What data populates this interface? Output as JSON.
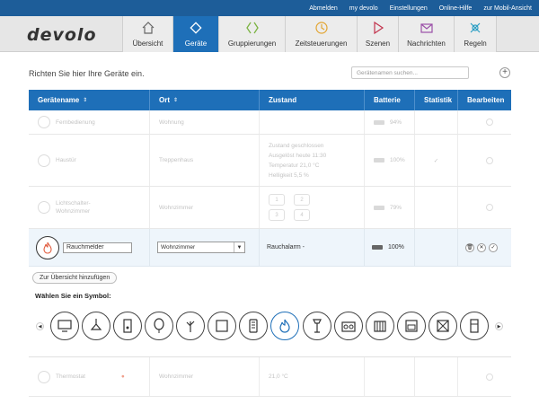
{
  "top_links": [
    "Abmelden",
    "my devolo",
    "Einstellungen",
    "Online-Hilfe",
    "zur Mobil-Ansicht"
  ],
  "brand": "devolo",
  "nav": [
    {
      "label": "Übersicht",
      "icon": "home-icon",
      "active": false
    },
    {
      "label": "Geräte",
      "icon": "diamond-icon",
      "active": true
    },
    {
      "label": "Gruppierungen",
      "icon": "group-icon",
      "active": false
    },
    {
      "label": "Zeitsteuerungen",
      "icon": "clock-icon",
      "active": false
    },
    {
      "label": "Szenen",
      "icon": "play-icon",
      "active": false
    },
    {
      "label": "Nachrichten",
      "icon": "envelope-icon",
      "active": false
    },
    {
      "label": "Regeln",
      "icon": "rules-icon",
      "active": false
    }
  ],
  "intro": "Richten Sie hier Ihre Geräte ein.",
  "search": {
    "placeholder": "Gerätenamen suchen..."
  },
  "add_button": "+",
  "table": {
    "headers": {
      "name": "Gerätename",
      "location": "Ort",
      "state": "Zustand",
      "battery": "Batterie",
      "stats": "Statistik",
      "edit": "Bearbeiten"
    },
    "rows": [
      {
        "name": "Fernbedienung",
        "location": "Wohnung",
        "state": "",
        "battery": "94%"
      },
      {
        "name": "Haustür",
        "location": "Treppenhaus",
        "state_lines": [
          "Zustand geschlossen",
          "Ausgelöst heute 11:30",
          "Temperatur 21,0 °C",
          "Helligkeit 5,5 %"
        ],
        "battery": "100%"
      },
      {
        "name": "Lichtschalter-Wohnzimmer",
        "location": "Wohnzimmer",
        "state_keys": [
          "1",
          "2",
          "3",
          "4"
        ],
        "battery": "79%"
      },
      {
        "name": "Thermostat",
        "location": "Wohnzimmer",
        "state": "21,0 °C"
      }
    ],
    "edit_row": {
      "name_value": "Rauchmelder",
      "room_value": "Wohnzimmer",
      "state": "Rauchalarm -",
      "battery": "100%"
    }
  },
  "symbol_panel": {
    "overview_button": "Zur Übersicht hinzufügen",
    "title": "Wählen Sie ein Symbol:",
    "symbols": [
      "tv-icon",
      "ceiling-lamp-icon",
      "door-contact-icon",
      "balloon-icon",
      "plant-icon",
      "blank-square-icon",
      "remote-icon",
      "fire-icon",
      "floor-lamp-icon",
      "radio-icon",
      "radiator-icon",
      "stove-icon",
      "no-symbol-icon",
      "fridge-icon"
    ],
    "selected_index": 7
  },
  "colors": {
    "primary": "#1e6fb8",
    "topbar": "#1d5d99",
    "header_bg": "#e6e6e6",
    "smoke_icon": "#e05a3c"
  }
}
